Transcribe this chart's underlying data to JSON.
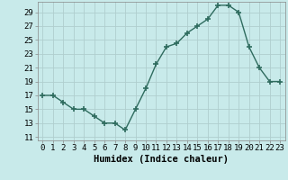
{
  "x": [
    0,
    1,
    2,
    3,
    4,
    5,
    6,
    7,
    8,
    9,
    10,
    11,
    12,
    13,
    14,
    15,
    16,
    17,
    18,
    19,
    20,
    21,
    22,
    23
  ],
  "y": [
    17,
    17,
    16,
    15,
    15,
    14,
    13,
    13,
    12,
    15,
    18,
    21.5,
    24,
    24.5,
    26,
    27,
    28,
    30,
    30,
    29,
    24,
    21,
    19,
    19
  ],
  "xlabel": "Humidex (Indice chaleur)",
  "xlim": [
    -0.5,
    23.5
  ],
  "ylim": [
    10.5,
    30.5
  ],
  "yticks": [
    11,
    13,
    15,
    17,
    19,
    21,
    23,
    25,
    27,
    29
  ],
  "xticks": [
    0,
    1,
    2,
    3,
    4,
    5,
    6,
    7,
    8,
    9,
    10,
    11,
    12,
    13,
    14,
    15,
    16,
    17,
    18,
    19,
    20,
    21,
    22,
    23
  ],
  "line_color": "#2e6b5e",
  "marker": "+",
  "marker_size": 4,
  "bg_color": "#c8eaea",
  "grid_color": "#b0cece",
  "tick_fontsize": 6.5,
  "xlabel_fontsize": 7.5
}
